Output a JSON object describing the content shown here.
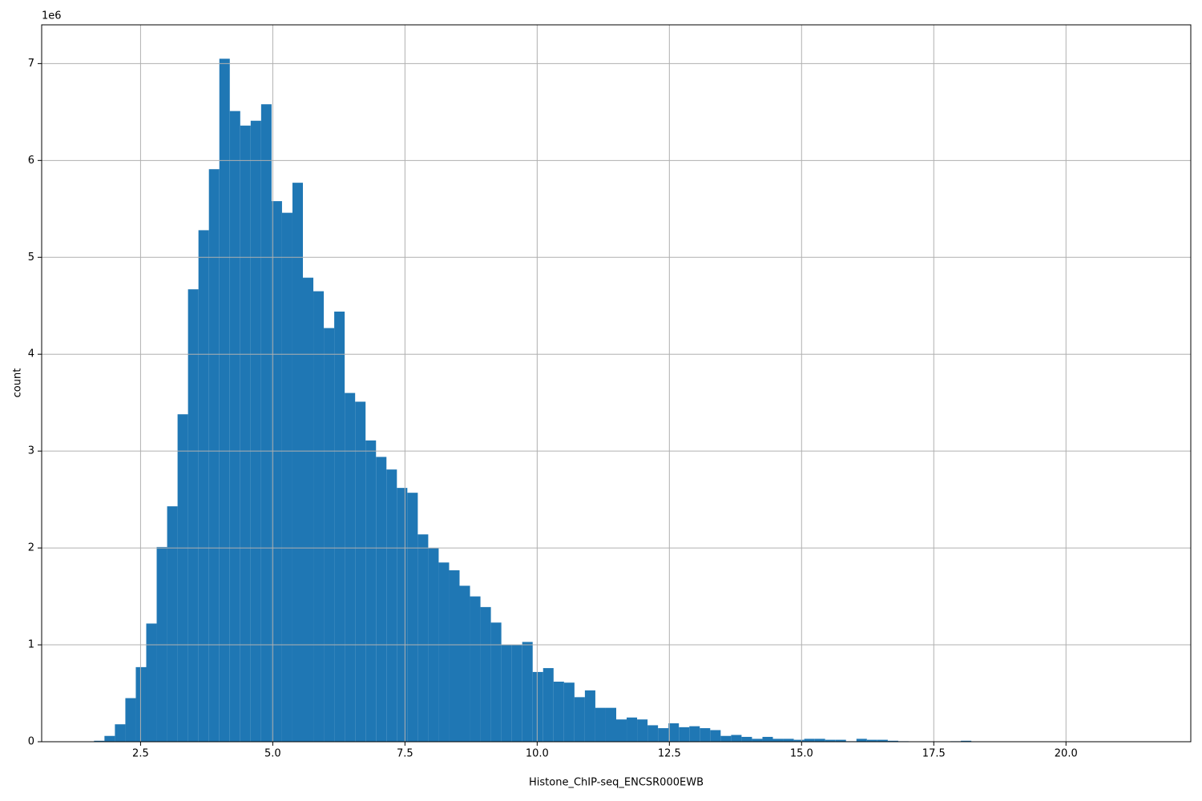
{
  "chart_data": {
    "type": "histogram",
    "x_label": "Histone_ChIP-seq_ENCSR000EWB",
    "y_label": "count",
    "y_offset_label": "1e6",
    "color": "#1f77b4",
    "grid": true,
    "bins": [
      1.62,
      1.8175,
      2.015,
      2.2125,
      2.41,
      2.6075,
      2.805,
      3.0025,
      3.2,
      3.3975,
      3.595,
      3.7925,
      3.99,
      4.1875,
      4.385,
      4.5825,
      4.78,
      4.9775,
      5.175,
      5.3725,
      5.57,
      5.7675,
      5.965,
      6.1625,
      6.36,
      6.5575,
      6.755,
      6.9525,
      7.15,
      7.3475,
      7.545,
      7.7425,
      7.94,
      8.1375,
      8.335,
      8.5325,
      8.73,
      8.9275,
      9.125,
      9.3225,
      9.52,
      9.7175,
      9.915,
      10.1125,
      10.31,
      10.5075,
      10.705,
      10.9025,
      11.1,
      11.2975,
      11.495,
      11.6925,
      11.89,
      12.0875,
      12.285,
      12.4825,
      12.68,
      12.8775,
      13.075,
      13.2725,
      13.47,
      13.6675,
      13.865,
      14.0625,
      14.26,
      14.4575,
      14.655,
      14.8525,
      15.05,
      15.2475,
      15.445,
      15.6425,
      15.84,
      16.0375,
      16.235,
      16.4325,
      16.63,
      16.8275,
      17.025,
      17.2225,
      17.42,
      17.6175,
      17.815,
      18.0125,
      18.21,
      18.4075,
      18.605,
      18.8025,
      19.0,
      19.1975,
      19.395,
      19.5925,
      19.79,
      19.9875,
      20.185,
      20.3825,
      20.58,
      20.7775,
      20.975,
      21.1725,
      21.37
    ],
    "values": [
      10000,
      60000,
      180000,
      450000,
      770000,
      1220000,
      2010000,
      2430000,
      3380000,
      4670000,
      5280000,
      5910000,
      7050000,
      6510000,
      6360000,
      6410000,
      6580000,
      5580000,
      5460000,
      5770000,
      4790000,
      4650000,
      4270000,
      4440000,
      3600000,
      3510000,
      3110000,
      2940000,
      2810000,
      2620000,
      2570000,
      2140000,
      2000000,
      1850000,
      1770000,
      1610000,
      1500000,
      1390000,
      1230000,
      1000000,
      1000000,
      1030000,
      720000,
      760000,
      620000,
      610000,
      460000,
      530000,
      350000,
      350000,
      230000,
      250000,
      230000,
      170000,
      140000,
      190000,
      150000,
      160000,
      140000,
      120000,
      60000,
      70000,
      50000,
      30000,
      50000,
      30000,
      30000,
      20000,
      30000,
      30000,
      20000,
      20000,
      5000,
      30000,
      20000,
      20000,
      10000,
      5000,
      3000,
      3000,
      3000,
      3000,
      5000,
      10000,
      3000,
      2000,
      2000,
      2000,
      1000,
      1000,
      1000,
      1000,
      1000,
      1000,
      1000,
      1000,
      1000,
      500,
      500,
      500
    ],
    "xlim": [
      0.63,
      22.36
    ],
    "ylim": [
      0,
      7400000
    ],
    "xticks": [
      2.5,
      {
        "value": 5,
        "label": "5.0"
      },
      7.5,
      {
        "value": 10,
        "label": "10.0"
      },
      12.5,
      {
        "value": 15,
        "label": "15.0"
      },
      17.5,
      {
        "value": 20,
        "label": "20.0"
      }
    ],
    "yticks": [
      0,
      {
        "value": 1000000,
        "label": "1"
      },
      {
        "value": 2000000,
        "label": "2"
      },
      {
        "value": 3000000,
        "label": "3"
      },
      {
        "value": 4000000,
        "label": "4"
      },
      {
        "value": 5000000,
        "label": "5"
      },
      {
        "value": 6000000,
        "label": "6"
      },
      {
        "value": 7000000,
        "label": "7"
      }
    ]
  }
}
